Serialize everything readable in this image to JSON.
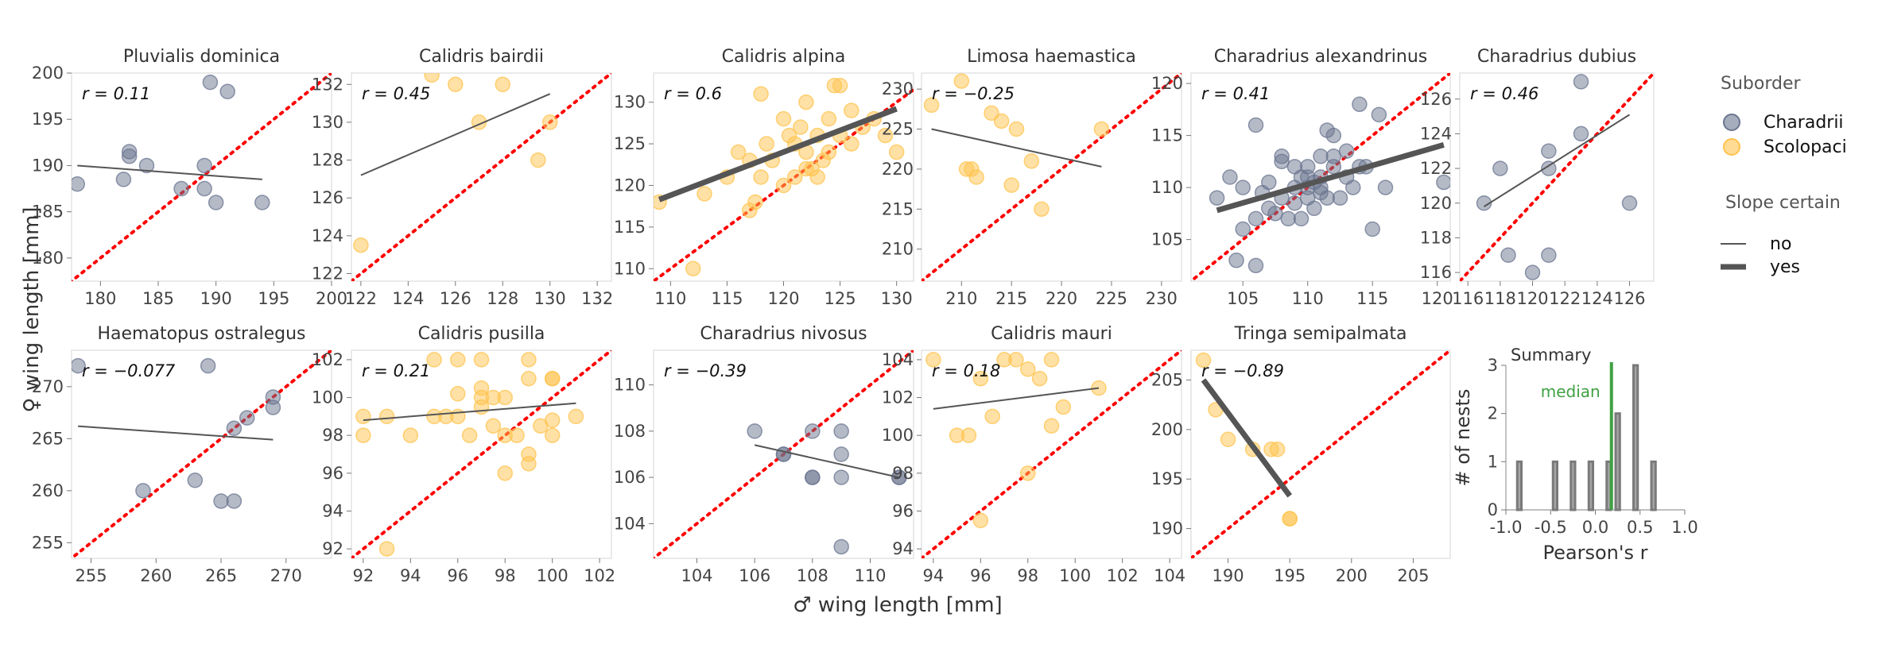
{
  "figure": {
    "ylabel": "♀ wing length [mm]",
    "xlabel": "♂ wing length [mm]"
  },
  "colors": {
    "charadrii": "#6b7690",
    "scolopaci": "#ffc34d",
    "identity_line": "#ff0000",
    "fit_line": "#555555",
    "axis": "#e3e3e3",
    "hist": "#a6a6a6",
    "median": "#3fa142"
  },
  "legend": {
    "suborder_title": "Suborder",
    "suborder_items": [
      {
        "label": "Charadrii",
        "color": "#6b7690"
      },
      {
        "label": "Scolopaci",
        "color": "#ffc34d"
      }
    ],
    "slope_title": "Slope certain",
    "slope_items": [
      {
        "label": "no",
        "style": "thin"
      },
      {
        "label": "yes",
        "style": "thick"
      }
    ]
  },
  "chart_data": [
    {
      "type": "scatter",
      "title": "Pluvialis dominica",
      "suborder": "Charadrii",
      "r_label": "r = 0.11",
      "xlim": [
        177.5,
        200
      ],
      "ylim": [
        177.5,
        200
      ],
      "xticks": [
        180,
        185,
        190,
        195,
        200
      ],
      "yticks": [
        180,
        185,
        190,
        195,
        200
      ],
      "x": [
        178,
        182,
        182.5,
        182.5,
        184,
        187,
        189,
        189,
        189.5,
        190,
        191,
        194
      ],
      "y": [
        188,
        188.5,
        191,
        191.5,
        190,
        187.5,
        187.5,
        190,
        199,
        186,
        198,
        186
      ],
      "fit": {
        "x": [
          178,
          194
        ],
        "y": [
          190,
          188.5
        ],
        "certain": false
      }
    },
    {
      "type": "scatter",
      "title": "Calidris bairdii",
      "suborder": "Scolopaci",
      "r_label": "r = 0.45",
      "xlim": [
        121.6,
        132.6
      ],
      "ylim": [
        121.6,
        132.6
      ],
      "xticks": [
        122,
        124,
        126,
        128,
        130,
        132
      ],
      "yticks": [
        122,
        124,
        126,
        128,
        130,
        132
      ],
      "x": [
        122,
        125,
        126,
        127,
        128,
        129.5,
        130
      ],
      "y": [
        123.5,
        132.5,
        132,
        130,
        132,
        128,
        130
      ],
      "fit": {
        "x": [
          122,
          130
        ],
        "y": [
          127.2,
          131.5
        ],
        "certain": false
      }
    },
    {
      "type": "scatter",
      "title": "Calidris alpina",
      "suborder": "Scolopaci",
      "r_label": "r = 0.6",
      "xlim": [
        108.5,
        131.5
      ],
      "ylim": [
        108.5,
        133.5
      ],
      "xticks": [
        110,
        115,
        120,
        125,
        130
      ],
      "yticks": [
        110,
        115,
        120,
        125,
        130
      ],
      "x": [
        109,
        112,
        113,
        115,
        116,
        117,
        117,
        117.5,
        118,
        118,
        118.5,
        119,
        120,
        120,
        120.5,
        121,
        121,
        121.5,
        122,
        122,
        122,
        122.5,
        123,
        123,
        123.5,
        124,
        124,
        124.5,
        125,
        125,
        126,
        126,
        127,
        128,
        129,
        130
      ],
      "y": [
        118,
        110,
        119,
        121,
        124,
        123,
        117,
        118,
        121,
        131,
        125,
        123,
        128,
        120,
        126,
        125,
        121,
        127,
        122,
        124,
        130,
        122,
        126,
        121,
        123,
        124,
        128,
        132,
        126,
        132,
        129,
        125,
        127,
        128,
        126,
        124
      ],
      "fit": {
        "x": [
          109,
          130
        ],
        "y": [
          118.3,
          129.2
        ],
        "certain": true
      }
    },
    {
      "type": "scatter",
      "title": "Limosa haemastica",
      "suborder": "Scolopaci",
      "r_label": "r = −0.25",
      "xlim": [
        206,
        232
      ],
      "ylim": [
        206,
        232
      ],
      "xticks": [
        210,
        215,
        220,
        225,
        230
      ],
      "yticks": [
        210,
        215,
        220,
        225,
        230
      ],
      "x": [
        207,
        210,
        210.5,
        211,
        211.5,
        213,
        214,
        215,
        215.5,
        217,
        218,
        224
      ],
      "y": [
        228,
        231,
        220,
        220,
        219,
        227,
        226,
        218,
        225,
        221,
        215,
        225
      ],
      "fit": {
        "x": [
          207,
          224
        ],
        "y": [
          225,
          220.3
        ],
        "certain": false
      }
    },
    {
      "type": "scatter",
      "title": "Charadrius alexandrinus",
      "suborder": "Charadrii",
      "r_label": "r = 0.41",
      "xlim": [
        101,
        121
      ],
      "ylim": [
        101,
        121
      ],
      "xticks": [
        105,
        110,
        115,
        120
      ],
      "yticks": [
        105,
        110,
        115,
        120
      ],
      "x": [
        103,
        104,
        104.5,
        105,
        105,
        106,
        106,
        106,
        106.5,
        107,
        107,
        107.5,
        108,
        108,
        108,
        108.5,
        109,
        109,
        109,
        109.5,
        109.5,
        110,
        110,
        110,
        110,
        110.5,
        110.5,
        111,
        111,
        111,
        111,
        111.5,
        111.5,
        112,
        112,
        112,
        112.5,
        113,
        113,
        113.5,
        114,
        114,
        114.5,
        115,
        115.5,
        116,
        120.5
      ],
      "y": [
        109,
        111,
        103,
        110,
        106,
        102.5,
        116,
        107,
        109.5,
        110.5,
        108,
        107.5,
        112.5,
        113,
        109,
        107,
        108.5,
        112,
        110,
        107,
        111,
        110,
        109,
        111,
        112,
        108,
        110.5,
        109.5,
        113,
        111,
        110,
        115.5,
        109,
        113,
        115,
        112,
        109,
        111,
        113.5,
        110,
        118,
        112,
        112,
        106,
        117,
        110,
        110.5
      ],
      "fit": {
        "x": [
          103,
          120.5
        ],
        "y": [
          107.8,
          114.1
        ],
        "certain": true
      }
    },
    {
      "type": "scatter",
      "title": "Charadrius dubius",
      "suborder": "Charadrii",
      "r_label": "r = 0.46",
      "xlim": [
        115.5,
        127.5
      ],
      "ylim": [
        115.5,
        127.5
      ],
      "xticks": [
        116,
        118,
        120,
        122,
        124,
        126
      ],
      "yticks": [
        116,
        118,
        120,
        122,
        124,
        126
      ],
      "x": [
        117,
        118,
        118.5,
        120,
        121,
        121,
        121,
        123,
        123,
        126
      ],
      "y": [
        120,
        122,
        117,
        116,
        122,
        123,
        117,
        127,
        124,
        120
      ],
      "fit": {
        "x": [
          117,
          126
        ],
        "y": [
          119.8,
          125.1
        ],
        "certain": false
      }
    },
    {
      "type": "scatter",
      "title": "Haematopus ostralegus",
      "suborder": "Charadrii",
      "r_label": "r = −0.077",
      "xlim": [
        253.5,
        273.5
      ],
      "ylim": [
        253.5,
        273.5
      ],
      "xticks": [
        255,
        260,
        265,
        270
      ],
      "yticks": [
        255,
        260,
        265,
        270
      ],
      "x": [
        254,
        259,
        263,
        264,
        265,
        266,
        266,
        267,
        269,
        269
      ],
      "y": [
        272,
        260,
        261,
        272,
        259,
        259,
        266,
        267,
        268,
        269
      ],
      "fit": {
        "x": [
          254,
          269
        ],
        "y": [
          266.2,
          264.9
        ],
        "certain": false
      }
    },
    {
      "type": "scatter",
      "title": "Calidris pusilla",
      "suborder": "Scolopaci",
      "r_label": "r = 0.21",
      "xlim": [
        91.5,
        102.5
      ],
      "ylim": [
        91.5,
        102.5
      ],
      "xticks": [
        92,
        94,
        96,
        98,
        100,
        102
      ],
      "yticks": [
        92,
        94,
        96,
        98,
        100,
        102
      ],
      "x": [
        92,
        92,
        93,
        93,
        94,
        95,
        95,
        95.5,
        96,
        96,
        96,
        96.5,
        97,
        97,
        97,
        97,
        97.5,
        97.5,
        98,
        98,
        98,
        98.5,
        99,
        99,
        99,
        99,
        99.5,
        100,
        100,
        100,
        100,
        101
      ],
      "y": [
        99,
        98,
        92,
        99,
        98,
        102,
        99,
        99,
        100.2,
        102,
        99,
        98,
        100.5,
        100,
        99.5,
        102,
        98.5,
        100,
        96,
        98,
        100,
        98,
        102,
        97,
        96.5,
        101,
        98.5,
        101,
        98.8,
        98,
        101,
        99
      ],
      "fit": {
        "x": [
          92,
          101
        ],
        "y": [
          98.8,
          99.7
        ],
        "certain": false
      }
    },
    {
      "type": "scatter",
      "title": "Charadrius nivosus",
      "suborder": "Charadrii",
      "r_label": "r = −0.39",
      "xlim": [
        102.5,
        111.5
      ],
      "ylim": [
        102.5,
        111.5
      ],
      "xticks": [
        104,
        106,
        108,
        110
      ],
      "yticks": [
        104,
        106,
        108,
        110
      ],
      "x": [
        106,
        107,
        107,
        108,
        108,
        108,
        109,
        109,
        109,
        109,
        111,
        111
      ],
      "y": [
        108,
        107,
        107,
        108,
        106,
        106,
        108,
        107,
        106,
        103,
        106,
        106
      ],
      "fit": {
        "x": [
          106,
          111
        ],
        "y": [
          107.4,
          106
        ],
        "certain": false
      }
    },
    {
      "type": "scatter",
      "title": "Calidris mauri",
      "suborder": "Scolopaci",
      "r_label": "r = 0.18",
      "xlim": [
        93.5,
        104.5
      ],
      "ylim": [
        93.5,
        104.5
      ],
      "xticks": [
        94,
        96,
        98,
        100,
        102,
        104
      ],
      "yticks": [
        94,
        96,
        98,
        100,
        102,
        104
      ],
      "x": [
        94,
        95,
        95.5,
        96,
        96,
        96.5,
        97,
        97.5,
        98,
        98,
        98.5,
        99,
        99,
        99.5,
        101
      ],
      "y": [
        104,
        100,
        100,
        95.5,
        103,
        101,
        104,
        104,
        98,
        103.5,
        103,
        104,
        100.5,
        101.5,
        102.5
      ],
      "fit": {
        "x": [
          94,
          101
        ],
        "y": [
          101.4,
          102.5
        ],
        "certain": false
      }
    },
    {
      "type": "scatter",
      "title": "Tringa semipalmata",
      "suborder": "Scolopaci",
      "r_label": "r = −0.89",
      "xlim": [
        187,
        208
      ],
      "ylim": [
        187,
        208
      ],
      "xticks": [
        190,
        195,
        200,
        205
      ],
      "yticks": [
        190,
        195,
        200,
        205
      ],
      "x": [
        188,
        189,
        190,
        192,
        193.5,
        194,
        195,
        195
      ],
      "y": [
        207,
        202,
        199,
        198,
        198,
        198,
        191,
        191
      ],
      "fit": {
        "x": [
          188,
          195
        ],
        "y": [
          205,
          193.3
        ],
        "certain": true
      }
    },
    {
      "type": "bar",
      "title": "Summary",
      "median_label": "median",
      "median": 0.18,
      "xlabel": "Pearson's r",
      "ylabel": "# of nests",
      "xlim": [
        -1,
        1
      ],
      "ylim": [
        0,
        3
      ],
      "xticks": [
        -1.0,
        -0.5,
        0.0,
        0.5,
        1.0
      ],
      "yticks": [
        0,
        1,
        2,
        3
      ],
      "bins": [
        -0.9,
        -0.6,
        -0.5,
        -0.4,
        -0.3,
        -0.1,
        0.1,
        0.2,
        0.4,
        0.6
      ],
      "bin_width": 0.1,
      "counts": [
        1,
        0,
        1,
        0,
        1,
        1,
        1,
        2,
        3,
        1
      ],
      "counts_nonzero_bins": [
        {
          "left": -0.9,
          "count": 1
        },
        {
          "left": -0.5,
          "count": 1
        },
        {
          "left": -0.3,
          "count": 1
        },
        {
          "left": -0.1,
          "count": 1
        },
        {
          "left": 0.1,
          "count": 1
        },
        {
          "left": 0.2,
          "count": 2
        },
        {
          "left": 0.4,
          "count": 3
        },
        {
          "left": 0.6,
          "count": 1
        }
      ]
    }
  ]
}
